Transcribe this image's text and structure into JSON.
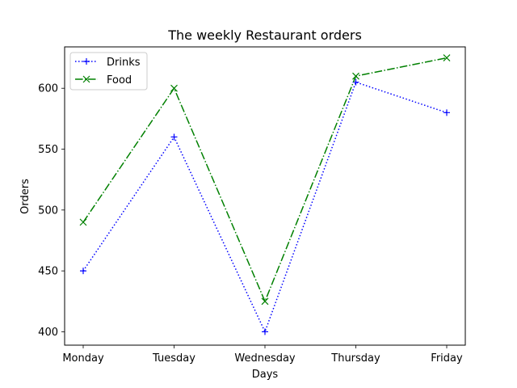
{
  "chart_data": {
    "type": "line",
    "title": "The weekly Restaurant orders",
    "xlabel": "Days",
    "ylabel": "Orders",
    "categories": [
      "Monday",
      "Tuesday",
      "Wednesday",
      "Thursday",
      "Friday"
    ],
    "yticks": [
      400,
      450,
      500,
      550,
      600
    ],
    "ylim": [
      389,
      634
    ],
    "grid": false,
    "legend_position": "upper-left",
    "series": [
      {
        "name": "Drinks",
        "values": [
          450,
          560,
          400,
          605,
          580
        ],
        "color": "#0000ff",
        "linestyle": "dotted",
        "marker": "+"
      },
      {
        "name": "Food",
        "values": [
          490,
          600,
          425,
          610,
          625
        ],
        "color": "#008000",
        "linestyle": "dashdot",
        "marker": "x"
      }
    ]
  }
}
